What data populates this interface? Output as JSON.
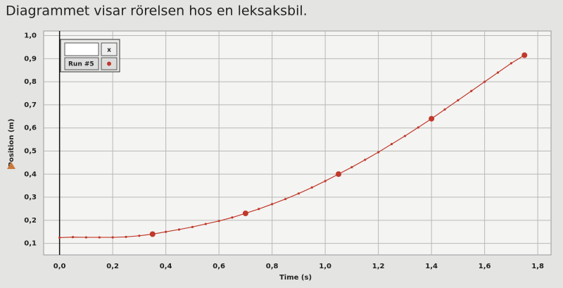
{
  "chart_data": {
    "type": "line",
    "title": "Diagrammet visar rörelsen hos en leksaksbil.",
    "x_label": "Time (s)",
    "y_label": "Position (m)",
    "legend_button": "x",
    "x": [
      0,
      0.05,
      0.1,
      0.15,
      0.2,
      0.25,
      0.3,
      0.35,
      0.4,
      0.45,
      0.5,
      0.55,
      0.6,
      0.65,
      0.7,
      0.75,
      0.8,
      0.85,
      0.9,
      0.95,
      1.0,
      1.05,
      1.1,
      1.15,
      1.2,
      1.25,
      1.3,
      1.35,
      1.4,
      1.45,
      1.5,
      1.55,
      1.6,
      1.65,
      1.7,
      1.75
    ],
    "series": [
      {
        "name": "Run #5",
        "color": "#c0392b",
        "values": [
          0.125,
          0.127,
          0.126,
          0.126,
          0.126,
          0.128,
          0.133,
          0.14,
          0.15,
          0.16,
          0.171,
          0.184,
          0.197,
          0.212,
          0.23,
          0.249,
          0.27,
          0.292,
          0.316,
          0.342,
          0.37,
          0.4,
          0.43,
          0.462,
          0.495,
          0.53,
          0.565,
          0.602,
          0.64,
          0.68,
          0.72,
          0.76,
          0.8,
          0.84,
          0.88,
          0.915
        ]
      }
    ],
    "xlim": [
      -0.06,
      1.85
    ],
    "ylim": [
      0.05,
      1.02
    ],
    "xticks": [
      {
        "value": 0,
        "label": "0,0"
      },
      {
        "value": 0.2,
        "label": "0,2"
      },
      {
        "value": 0.4,
        "label": "0,4"
      },
      {
        "value": 0.6,
        "label": "0,6"
      },
      {
        "value": 0.8,
        "label": "0,8"
      },
      {
        "value": 1.0,
        "label": "1,0"
      },
      {
        "value": 1.2,
        "label": "1,2"
      },
      {
        "value": 1.4,
        "label": "1,4"
      },
      {
        "value": 1.6,
        "label": "1,6"
      },
      {
        "value": 1.8,
        "label": "1,8"
      }
    ],
    "yticks": [
      {
        "value": 0.1,
        "label": "0,1"
      },
      {
        "value": 0.2,
        "label": "0,2"
      },
      {
        "value": 0.3,
        "label": "0,3"
      },
      {
        "value": 0.4,
        "label": "0,4"
      },
      {
        "value": 0.5,
        "label": "0,5"
      },
      {
        "value": 0.6,
        "label": "0,6"
      },
      {
        "value": 0.7,
        "label": "0,7"
      },
      {
        "value": 0.8,
        "label": "0,8"
      },
      {
        "value": 0.9,
        "label": "0,9"
      },
      {
        "value": 1.0,
        "label": "1,0"
      }
    ],
    "grid": true
  }
}
